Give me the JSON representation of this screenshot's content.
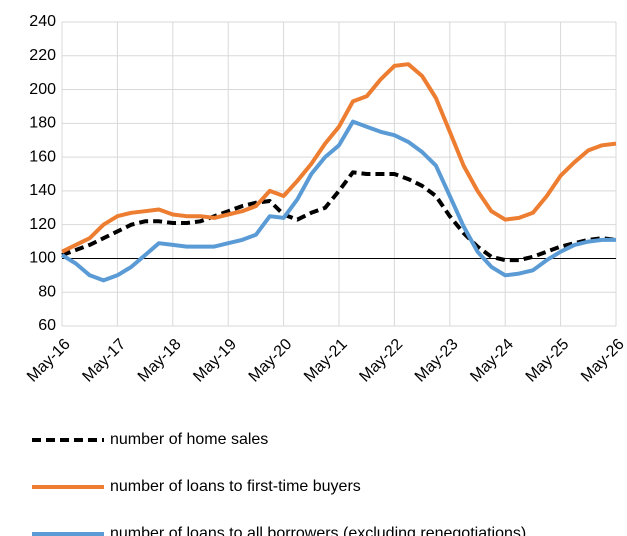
{
  "chart_data": {
    "type": "line",
    "categories": [
      "May-16",
      null,
      null,
      null,
      "May-17",
      null,
      null,
      null,
      "May-18",
      null,
      null,
      null,
      "May-19",
      null,
      null,
      null,
      "May-20",
      null,
      null,
      null,
      "May-21",
      null,
      null,
      null,
      "May-22",
      null,
      null,
      null,
      "May-23",
      null,
      null,
      null,
      "May-24",
      null,
      null,
      null,
      "May-25",
      null,
      null,
      null,
      "May-26"
    ],
    "series": [
      {
        "name": "number of home sales",
        "color": "#000000",
        "dashed": true,
        "values": [
          102,
          105,
          108,
          112,
          116,
          120,
          122,
          122,
          121,
          121,
          122,
          125,
          128,
          131,
          133,
          134,
          126,
          123,
          127,
          130,
          140,
          151,
          150,
          150,
          150,
          147,
          143,
          137,
          125,
          115,
          107,
          101,
          99,
          99,
          101,
          104,
          107,
          109,
          111,
          112,
          111
        ]
      },
      {
        "name": "number of loans to first-time buyers",
        "color": "#ED7D31",
        "dashed": false,
        "values": [
          104,
          108,
          112,
          120,
          125,
          127,
          128,
          129,
          126,
          125,
          125,
          124,
          126,
          128,
          131,
          140,
          137,
          146,
          156,
          168,
          178,
          193,
          196,
          206,
          214,
          215,
          208,
          195,
          175,
          155,
          140,
          128,
          123,
          124,
          127,
          137,
          149,
          157,
          164,
          167,
          168
        ]
      },
      {
        "name": "number of loans to all borrowers (excluding renegotiations)",
        "color": "#5B9BD5",
        "dashed": false,
        "values": [
          102,
          97,
          90,
          87,
          90,
          95,
          102,
          109,
          108,
          107,
          107,
          107,
          109,
          111,
          114,
          125,
          124,
          135,
          150,
          160,
          167,
          181,
          178,
          175,
          173,
          169,
          163,
          155,
          137,
          119,
          104,
          95,
          90,
          91,
          93,
          99,
          104,
          108,
          110,
          111,
          111
        ]
      }
    ],
    "ylim": [
      60,
      240
    ],
    "yticks": [
      60,
      80,
      100,
      120,
      140,
      160,
      180,
      200,
      220,
      240
    ],
    "x_axis_crosses": 100,
    "grid": true,
    "legend": "bottom"
  }
}
